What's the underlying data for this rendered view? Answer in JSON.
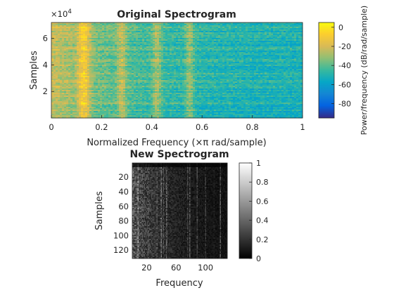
{
  "chart_data": [
    {
      "type": "heatmap",
      "title": "Original Spectrogram",
      "xlabel": "Normalized Frequency  (×π rad/sample)",
      "ylabel": "Samples",
      "x_ticks": [
        "0",
        "0.2",
        "0.4",
        "0.6",
        "0.8",
        "1"
      ],
      "y_ticks": [
        "2",
        "4",
        "6"
      ],
      "y_exponent_label": "×10",
      "y_exponent_power": "4",
      "xlim": [
        0,
        1
      ],
      "ylim": [
        0,
        72000
      ],
      "colormap": "parula",
      "colorbar": {
        "label": "Power/frequency (dB/rad/sample)",
        "ticks": [
          "0",
          "-20",
          "-40",
          "-60",
          "-80"
        ],
        "range": [
          -95,
          5
        ]
      },
      "bright_bands_x": [
        0.12,
        0.14,
        0.28,
        0.42,
        0.55
      ]
    },
    {
      "type": "heatmap",
      "title": "New Spectrogram",
      "xlabel": "Frequency",
      "ylabel": "Samples",
      "x_ticks": [
        "20",
        "60",
        "100"
      ],
      "y_ticks": [
        "20",
        "40",
        "60",
        "80",
        "100",
        "120"
      ],
      "xlim": [
        0.5,
        129.5
      ],
      "ylim": [
        0.5,
        131.5
      ],
      "colormap": "gray",
      "colorbar": {
        "ticks": [
          "0",
          "0.2",
          "0.4",
          "0.6",
          "0.8",
          "1"
        ],
        "range": [
          0,
          1
        ]
      }
    }
  ]
}
